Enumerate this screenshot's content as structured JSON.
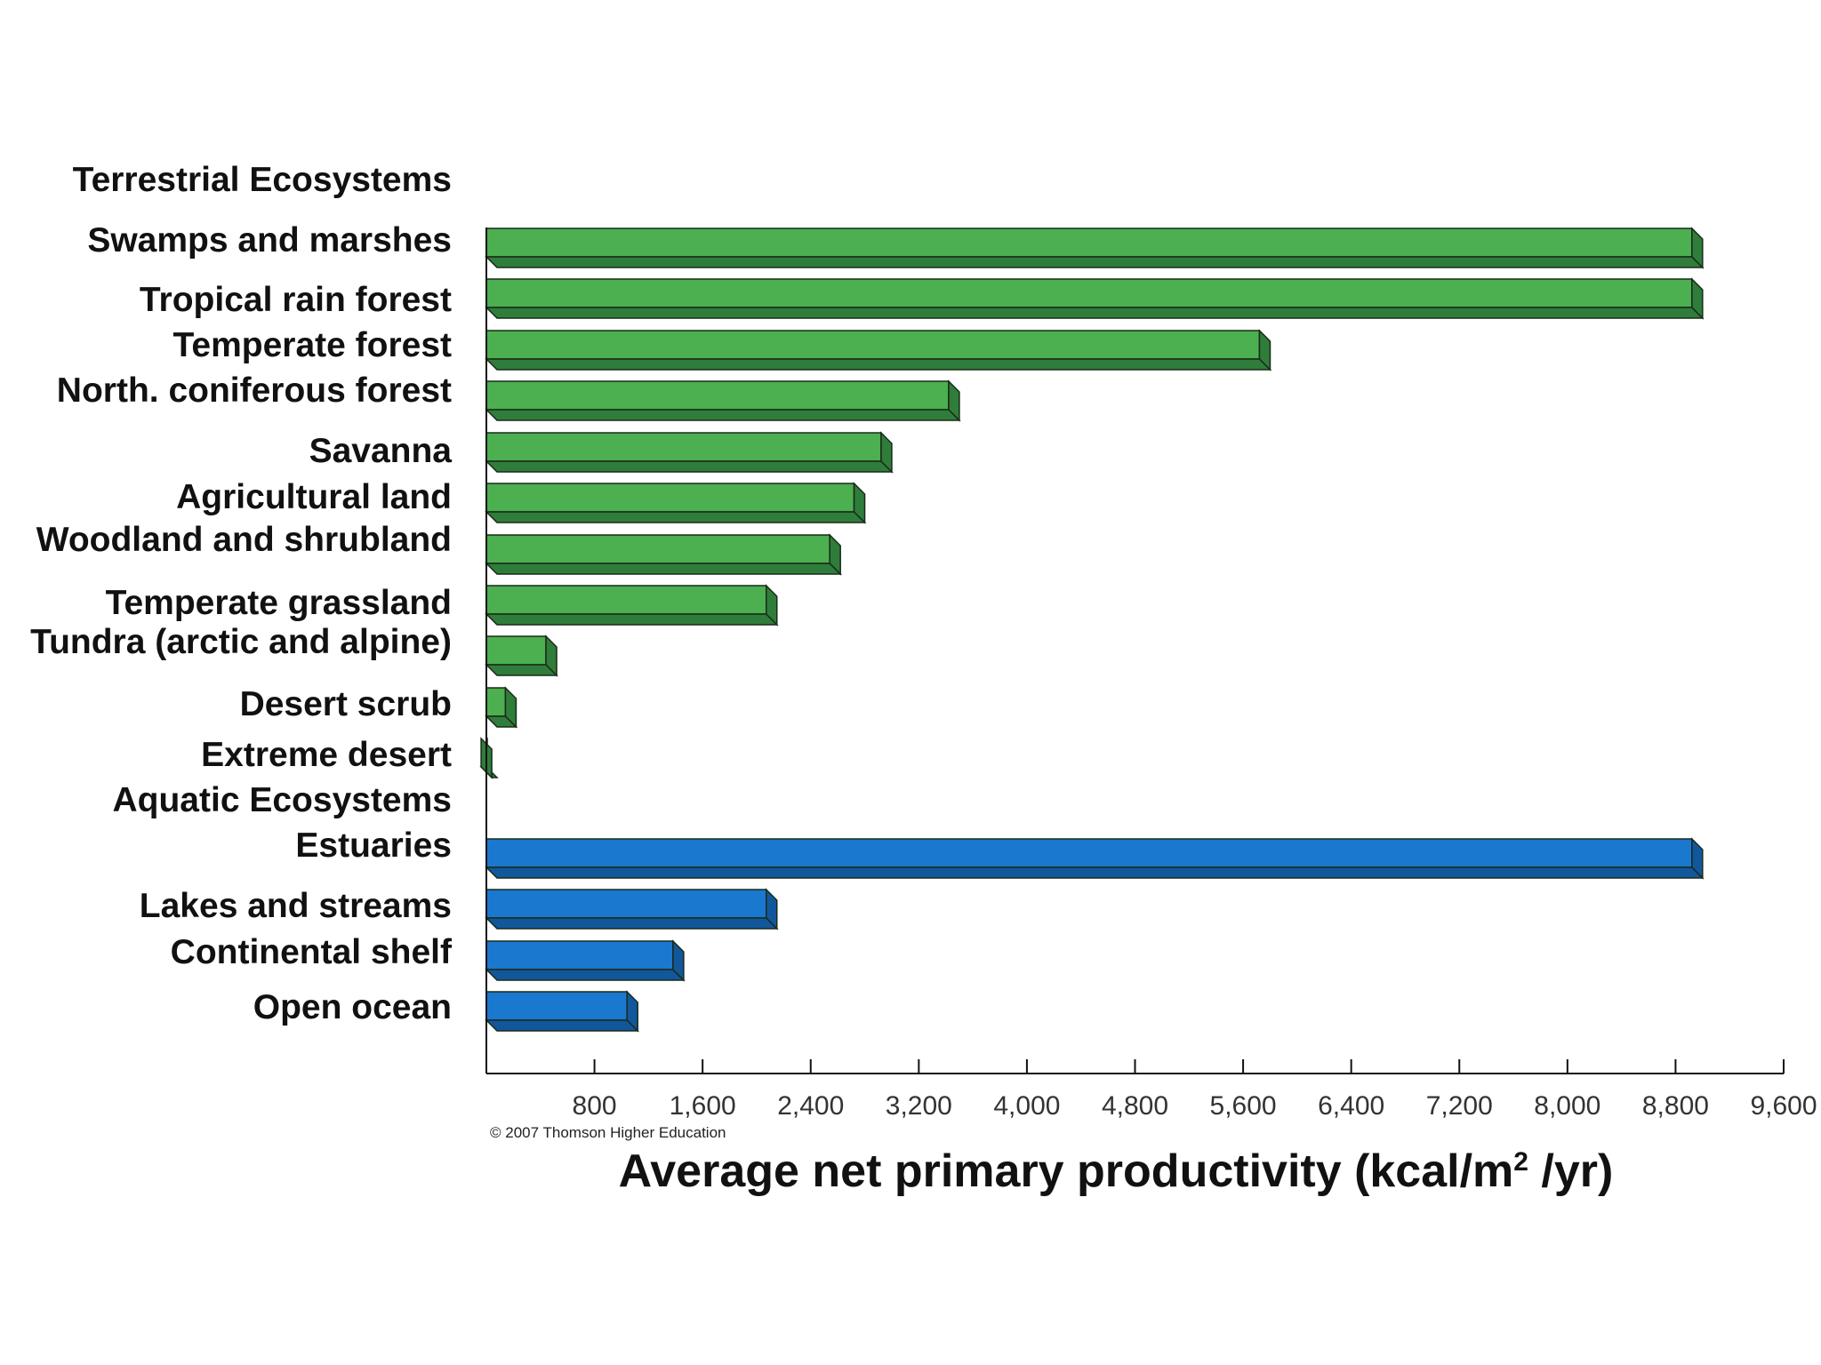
{
  "chart_data": {
    "type": "bar",
    "orientation": "horizontal",
    "xlabel_main": "Average net primary productivity (kcal/m",
    "xlabel_sup": "2",
    "xlabel_tail": " /yr)",
    "xlim": [
      0,
      9600
    ],
    "x_ticks": [
      "800",
      "1,600",
      "2,400",
      "3,200",
      "4,000",
      "4,800",
      "5,600",
      "6,400",
      "7,200",
      "8,000",
      "8,800",
      "9,600"
    ],
    "x_tick_values": [
      800,
      1600,
      2400,
      3200,
      4000,
      4800,
      5600,
      6400,
      7200,
      8000,
      8800,
      9600
    ],
    "copyright": "© 2007 Thomson Higher Education",
    "colors": {
      "terrestrial": "#4caf50",
      "terrestrial_dark": "#2f7d3a",
      "aquatic": "#1a78cf",
      "aquatic_dark": "#11579c"
    },
    "groups": [
      {
        "name": "Terrestrial Ecosystems",
        "color_key": "terrestrial",
        "categories": [
          "Swamps and marshes",
          "Tropical rain forest",
          "Temperate forest",
          "North. coniferous forest",
          "Savanna",
          "Agricultural land",
          "Woodland and shrubland",
          "Temperate grassland",
          "Tundra (arctic and alpine)",
          "Desert scrub",
          "Extreme desert"
        ],
        "values": [
          9000,
          9000,
          5800,
          3500,
          3000,
          2800,
          2620,
          2150,
          520,
          220,
          40
        ]
      },
      {
        "name": "Aquatic Ecosystems",
        "color_key": "aquatic",
        "categories": [
          "Estuaries",
          "Lakes and streams",
          "Continental shelf",
          "Open ocean"
        ],
        "values": [
          9000,
          2150,
          1460,
          1120
        ]
      }
    ]
  }
}
